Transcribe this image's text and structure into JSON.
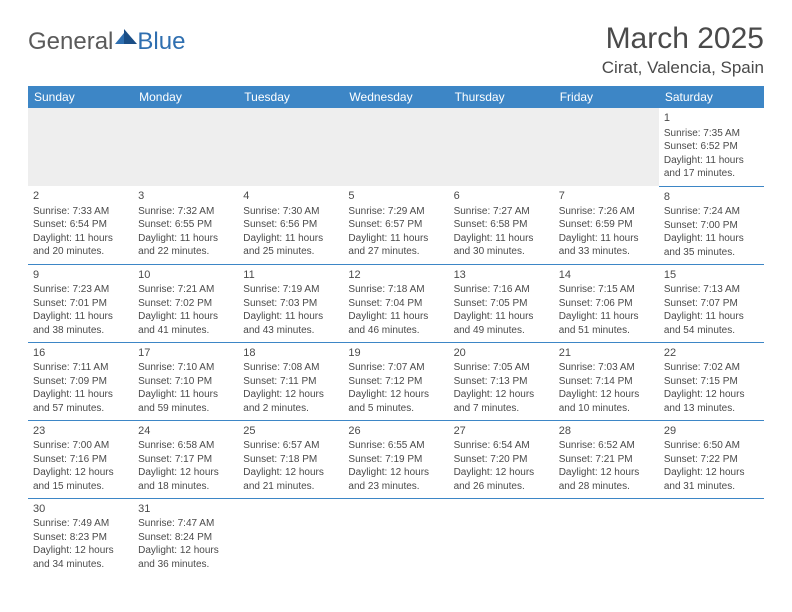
{
  "brand": {
    "part1": "General",
    "part2": "Blue"
  },
  "title": "March 2025",
  "location": "Cirat, Valencia, Spain",
  "colors": {
    "header_bg": "#3d86c6",
    "header_text": "#ffffff",
    "rule": "#3d86c6",
    "text": "#4a4a4a",
    "blank_bg": "#eeeeee"
  },
  "weekdays": [
    "Sunday",
    "Monday",
    "Tuesday",
    "Wednesday",
    "Thursday",
    "Friday",
    "Saturday"
  ],
  "weeks": [
    [
      null,
      null,
      null,
      null,
      null,
      null,
      {
        "n": "1",
        "sr": "Sunrise: 7:35 AM",
        "ss": "Sunset: 6:52 PM",
        "dl": "Daylight: 11 hours and 17 minutes."
      }
    ],
    [
      {
        "n": "2",
        "sr": "Sunrise: 7:33 AM",
        "ss": "Sunset: 6:54 PM",
        "dl": "Daylight: 11 hours and 20 minutes."
      },
      {
        "n": "3",
        "sr": "Sunrise: 7:32 AM",
        "ss": "Sunset: 6:55 PM",
        "dl": "Daylight: 11 hours and 22 minutes."
      },
      {
        "n": "4",
        "sr": "Sunrise: 7:30 AM",
        "ss": "Sunset: 6:56 PM",
        "dl": "Daylight: 11 hours and 25 minutes."
      },
      {
        "n": "5",
        "sr": "Sunrise: 7:29 AM",
        "ss": "Sunset: 6:57 PM",
        "dl": "Daylight: 11 hours and 27 minutes."
      },
      {
        "n": "6",
        "sr": "Sunrise: 7:27 AM",
        "ss": "Sunset: 6:58 PM",
        "dl": "Daylight: 11 hours and 30 minutes."
      },
      {
        "n": "7",
        "sr": "Sunrise: 7:26 AM",
        "ss": "Sunset: 6:59 PM",
        "dl": "Daylight: 11 hours and 33 minutes."
      },
      {
        "n": "8",
        "sr": "Sunrise: 7:24 AM",
        "ss": "Sunset: 7:00 PM",
        "dl": "Daylight: 11 hours and 35 minutes."
      }
    ],
    [
      {
        "n": "9",
        "sr": "Sunrise: 7:23 AM",
        "ss": "Sunset: 7:01 PM",
        "dl": "Daylight: 11 hours and 38 minutes."
      },
      {
        "n": "10",
        "sr": "Sunrise: 7:21 AM",
        "ss": "Sunset: 7:02 PM",
        "dl": "Daylight: 11 hours and 41 minutes."
      },
      {
        "n": "11",
        "sr": "Sunrise: 7:19 AM",
        "ss": "Sunset: 7:03 PM",
        "dl": "Daylight: 11 hours and 43 minutes."
      },
      {
        "n": "12",
        "sr": "Sunrise: 7:18 AM",
        "ss": "Sunset: 7:04 PM",
        "dl": "Daylight: 11 hours and 46 minutes."
      },
      {
        "n": "13",
        "sr": "Sunrise: 7:16 AM",
        "ss": "Sunset: 7:05 PM",
        "dl": "Daylight: 11 hours and 49 minutes."
      },
      {
        "n": "14",
        "sr": "Sunrise: 7:15 AM",
        "ss": "Sunset: 7:06 PM",
        "dl": "Daylight: 11 hours and 51 minutes."
      },
      {
        "n": "15",
        "sr": "Sunrise: 7:13 AM",
        "ss": "Sunset: 7:07 PM",
        "dl": "Daylight: 11 hours and 54 minutes."
      }
    ],
    [
      {
        "n": "16",
        "sr": "Sunrise: 7:11 AM",
        "ss": "Sunset: 7:09 PM",
        "dl": "Daylight: 11 hours and 57 minutes."
      },
      {
        "n": "17",
        "sr": "Sunrise: 7:10 AM",
        "ss": "Sunset: 7:10 PM",
        "dl": "Daylight: 11 hours and 59 minutes."
      },
      {
        "n": "18",
        "sr": "Sunrise: 7:08 AM",
        "ss": "Sunset: 7:11 PM",
        "dl": "Daylight: 12 hours and 2 minutes."
      },
      {
        "n": "19",
        "sr": "Sunrise: 7:07 AM",
        "ss": "Sunset: 7:12 PM",
        "dl": "Daylight: 12 hours and 5 minutes."
      },
      {
        "n": "20",
        "sr": "Sunrise: 7:05 AM",
        "ss": "Sunset: 7:13 PM",
        "dl": "Daylight: 12 hours and 7 minutes."
      },
      {
        "n": "21",
        "sr": "Sunrise: 7:03 AM",
        "ss": "Sunset: 7:14 PM",
        "dl": "Daylight: 12 hours and 10 minutes."
      },
      {
        "n": "22",
        "sr": "Sunrise: 7:02 AM",
        "ss": "Sunset: 7:15 PM",
        "dl": "Daylight: 12 hours and 13 minutes."
      }
    ],
    [
      {
        "n": "23",
        "sr": "Sunrise: 7:00 AM",
        "ss": "Sunset: 7:16 PM",
        "dl": "Daylight: 12 hours and 15 minutes."
      },
      {
        "n": "24",
        "sr": "Sunrise: 6:58 AM",
        "ss": "Sunset: 7:17 PM",
        "dl": "Daylight: 12 hours and 18 minutes."
      },
      {
        "n": "25",
        "sr": "Sunrise: 6:57 AM",
        "ss": "Sunset: 7:18 PM",
        "dl": "Daylight: 12 hours and 21 minutes."
      },
      {
        "n": "26",
        "sr": "Sunrise: 6:55 AM",
        "ss": "Sunset: 7:19 PM",
        "dl": "Daylight: 12 hours and 23 minutes."
      },
      {
        "n": "27",
        "sr": "Sunrise: 6:54 AM",
        "ss": "Sunset: 7:20 PM",
        "dl": "Daylight: 12 hours and 26 minutes."
      },
      {
        "n": "28",
        "sr": "Sunrise: 6:52 AM",
        "ss": "Sunset: 7:21 PM",
        "dl": "Daylight: 12 hours and 28 minutes."
      },
      {
        "n": "29",
        "sr": "Sunrise: 6:50 AM",
        "ss": "Sunset: 7:22 PM",
        "dl": "Daylight: 12 hours and 31 minutes."
      }
    ],
    [
      {
        "n": "30",
        "sr": "Sunrise: 7:49 AM",
        "ss": "Sunset: 8:23 PM",
        "dl": "Daylight: 12 hours and 34 minutes."
      },
      {
        "n": "31",
        "sr": "Sunrise: 7:47 AM",
        "ss": "Sunset: 8:24 PM",
        "dl": "Daylight: 12 hours and 36 minutes."
      },
      null,
      null,
      null,
      null,
      null
    ]
  ]
}
